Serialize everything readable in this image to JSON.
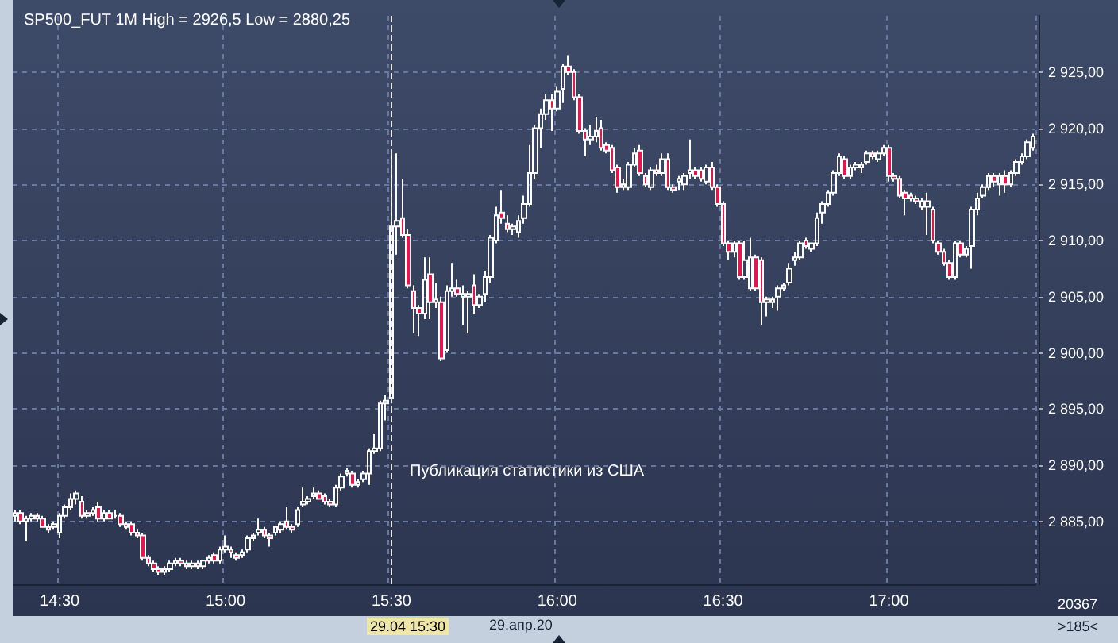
{
  "chart_data": {
    "type": "candlestick",
    "title": "SP500_FUT 1M High = 2926,5 Low = 2880,25",
    "categories": [
      null,
      null,
      null,
      null,
      null,
      null,
      null,
      null,
      "14:30",
      null,
      null,
      null,
      null,
      null,
      null,
      null,
      null,
      null,
      null,
      null,
      null,
      null,
      null,
      null,
      null,
      null,
      null,
      null,
      null,
      null,
      null,
      null,
      null,
      null,
      null,
      null,
      null,
      null,
      "15:00",
      null,
      null,
      null,
      null,
      null,
      null,
      null,
      null,
      null,
      null,
      null,
      null,
      null,
      null,
      null,
      null,
      null,
      null,
      null,
      null,
      null,
      null,
      null,
      null,
      null,
      null,
      null,
      null,
      null,
      "15:30",
      null,
      null,
      null,
      null,
      null,
      null,
      null,
      null,
      null,
      null,
      null,
      null,
      null,
      null,
      null,
      null,
      null,
      null,
      null,
      null,
      null,
      null,
      null,
      null,
      null,
      null,
      null,
      null,
      null,
      "16:00",
      null,
      null,
      null,
      null,
      null,
      null,
      null,
      null,
      null,
      null,
      null,
      null,
      null,
      null,
      null,
      null,
      null,
      null,
      null,
      null,
      null,
      null,
      null,
      null,
      null,
      null,
      null,
      null,
      null,
      "16:30",
      null,
      null,
      null,
      null,
      null,
      null,
      null,
      null,
      null,
      null,
      null,
      null,
      null,
      null,
      null,
      null,
      null,
      null,
      null,
      null,
      null,
      null,
      null,
      null,
      null,
      null,
      null,
      null,
      null,
      "17:00",
      null,
      null,
      null,
      null,
      null,
      null,
      null,
      null,
      null,
      null,
      null,
      null,
      null,
      null,
      null,
      null,
      null,
      null,
      null,
      null,
      null,
      null,
      null,
      null,
      null,
      null
    ],
    "series": [
      {
        "color": "#ffffff",
        "ohlc": [
          [
            2885.5,
            2886,
            2885,
            2885.75
          ],
          [
            2885.75,
            2886,
            2884.75,
            2885
          ],
          [
            2885,
            2885.5,
            2883.25,
            2885.25
          ],
          [
            2885.25,
            2885.75,
            2885,
            2885.5
          ],
          [
            2885.5,
            2885.75,
            2885,
            2885.25
          ],
          [
            2885.25,
            2885.5,
            2884.5,
            2884.5
          ],
          [
            2884.5,
            2884.75,
            2884,
            2884.25
          ],
          [
            2884.5,
            2885,
            2884.25,
            2884.75
          ],
          [
            2884,
            2885.75,
            2883.5,
            2885.5
          ],
          [
            2885.5,
            2886.5,
            2885.25,
            2886.25
          ],
          [
            2886.25,
            2887.5,
            2886,
            2887
          ],
          [
            2887,
            2887.75,
            2886.5,
            2887.5
          ],
          [
            2886.75,
            2887.25,
            2885.25,
            2885.5
          ],
          [
            2885.5,
            2886,
            2885.25,
            2885.75
          ],
          [
            2885.75,
            2886.25,
            2885.5,
            2886
          ],
          [
            2886.25,
            2886.75,
            2885,
            2885.25
          ],
          [
            2885.25,
            2886,
            2885,
            2885.75
          ],
          [
            2885.75,
            2886,
            2885.25,
            2885.25
          ],
          [
            2885.5,
            2886,
            2885.25,
            2885.5
          ],
          [
            2885.5,
            2885.75,
            2884.5,
            2884.75
          ],
          [
            2884.75,
            2885,
            2884.25,
            2884.5
          ],
          [
            2884.75,
            2885,
            2883.75,
            2884
          ],
          [
            2884,
            2884.25,
            2883.5,
            2883.75
          ],
          [
            2883.75,
            2884,
            2881.5,
            2881.75
          ],
          [
            2881.75,
            2882,
            2881,
            2881.25
          ],
          [
            2881.25,
            2881.5,
            2880.5,
            2880.75
          ],
          [
            2880.75,
            2881,
            2880.25,
            2880.5
          ],
          [
            2880.5,
            2881,
            2880.25,
            2880.75
          ],
          [
            2880.75,
            2881.5,
            2880.5,
            2881.25
          ],
          [
            2881.25,
            2881.75,
            2881,
            2881.5
          ],
          [
            2881.5,
            2881.75,
            2881,
            2881.25
          ],
          [
            2881.25,
            2881.5,
            2880.75,
            2881
          ],
          [
            2881,
            2881.5,
            2880.75,
            2881.25
          ],
          [
            2881.25,
            2881.5,
            2880.75,
            2881
          ],
          [
            2881,
            2881.5,
            2880.75,
            2881.5
          ],
          [
            2881.5,
            2882,
            2881.25,
            2881.75
          ],
          [
            2882,
            2882.25,
            2881.25,
            2881.5
          ],
          [
            2881.5,
            2882.75,
            2881.25,
            2882.5
          ],
          [
            2882.5,
            2883.75,
            2882.25,
            2882.75
          ],
          [
            2882.5,
            2882.75,
            2881.75,
            2882.25
          ],
          [
            2882,
            2882.25,
            2881.5,
            2881.75
          ],
          [
            2882,
            2882.5,
            2881.75,
            2882.25
          ],
          [
            2882.5,
            2883.75,
            2882.25,
            2883.5
          ],
          [
            2883.5,
            2884,
            2883.25,
            2883.75
          ],
          [
            2884,
            2885.25,
            2883.75,
            2884.25
          ],
          [
            2884.25,
            2884.5,
            2883.5,
            2883.75
          ],
          [
            2883.75,
            2884,
            2882.75,
            2883.5
          ],
          [
            2884,
            2884.5,
            2883.75,
            2884.5
          ],
          [
            2884.25,
            2885,
            2884,
            2884.75
          ],
          [
            2885,
            2886.25,
            2884.25,
            2884.5
          ],
          [
            2884.5,
            2884.75,
            2884,
            2884.25
          ],
          [
            2884.75,
            2886.25,
            2884.5,
            2886
          ],
          [
            2886.5,
            2888,
            2886.25,
            2886.75
          ],
          [
            2886.75,
            2887.25,
            2886.5,
            2887
          ],
          [
            2887.25,
            2888,
            2887,
            2887.5
          ],
          [
            2887.5,
            2887.75,
            2887,
            2887
          ],
          [
            2887.25,
            2887.5,
            2886.5,
            2886.75
          ],
          [
            2886.75,
            2887,
            2886.25,
            2886.5
          ],
          [
            2886.5,
            2888.25,
            2886.25,
            2888
          ],
          [
            2888,
            2889.25,
            2887.75,
            2889
          ],
          [
            2889.25,
            2889.75,
            2889,
            2889.5
          ],
          [
            2889.25,
            2889.5,
            2888,
            2888.25
          ],
          [
            2888.25,
            2888.75,
            2888,
            2888.5
          ],
          [
            2888.75,
            2889.5,
            2888.5,
            2889.25
          ],
          [
            2889.25,
            2891.5,
            2888.25,
            2891.25
          ],
          [
            2891.25,
            2892.75,
            2891,
            2891.5
          ],
          [
            2891.5,
            2895.75,
            2891.25,
            2895.5
          ],
          [
            2895.5,
            2896.25,
            2894,
            2895.75
          ],
          [
            2896,
            2918,
            2895.5,
            2911.25
          ],
          [
            2911.25,
            2917.75,
            2908.75,
            2911.75
          ],
          [
            2912,
            2915.5,
            2910.25,
            2910.5
          ],
          [
            2910.5,
            2911,
            2905.75,
            2906
          ],
          [
            2905.5,
            2906,
            2901.75,
            2904
          ],
          [
            2904,
            2904.25,
            2901.5,
            2903.5
          ],
          [
            2903.5,
            2908.5,
            2903,
            2906.5
          ],
          [
            2907,
            2908.5,
            2903,
            2904.5
          ],
          [
            2904.5,
            2906.25,
            2904,
            2904.75
          ],
          [
            2904.5,
            2905,
            2899.25,
            2899.5
          ],
          [
            2900.25,
            2906,
            2900,
            2905.5
          ],
          [
            2905.5,
            2908,
            2905,
            2905.75
          ],
          [
            2905.75,
            2906.5,
            2905,
            2905.25
          ],
          [
            2905,
            2906,
            2902.5,
            2905.25
          ],
          [
            2905,
            2905.5,
            2901.75,
            2905.25
          ],
          [
            2906,
            2907,
            2903.5,
            2904.25
          ],
          [
            2904.25,
            2905.25,
            2904,
            2905
          ],
          [
            2905.25,
            2907.25,
            2904.5,
            2906.75
          ],
          [
            2906.75,
            2910.5,
            2906.25,
            2910.25
          ],
          [
            2910,
            2913,
            2909.75,
            2912.25
          ],
          [
            2912.5,
            2914.5,
            2911.5,
            2912
          ],
          [
            2911.5,
            2912.25,
            2910.75,
            2911
          ],
          [
            2911,
            2911.5,
            2910.5,
            2911.25
          ],
          [
            2910.75,
            2912.25,
            2910.25,
            2911.75
          ],
          [
            2912,
            2914,
            2911.5,
            2913.25
          ],
          [
            2913.25,
            2918.5,
            2913,
            2916
          ],
          [
            2916,
            2920.25,
            2915.5,
            2920
          ],
          [
            2920,
            2921.75,
            2918.25,
            2921.25
          ],
          [
            2921.25,
            2923,
            2920.75,
            2922.5
          ],
          [
            2922.5,
            2923,
            2919.75,
            2921.75
          ],
          [
            2921.75,
            2923.75,
            2921.5,
            2923.25
          ],
          [
            2923.5,
            2925.75,
            2922.25,
            2925.5
          ],
          [
            2925.5,
            2926.5,
            2924.75,
            2925
          ],
          [
            2925,
            2925.25,
            2922.5,
            2922.75
          ],
          [
            2922.75,
            2923,
            2919.5,
            2919.75
          ],
          [
            2919.75,
            2920,
            2917.5,
            2919
          ],
          [
            2919,
            2920.25,
            2918.5,
            2919.25
          ],
          [
            2919.25,
            2921,
            2918.75,
            2919.75
          ],
          [
            2920,
            2920.75,
            2918,
            2918.25
          ],
          [
            2918.5,
            2918.75,
            2917.75,
            2918
          ],
          [
            2918.25,
            2918.5,
            2916,
            2916.25
          ],
          [
            2916.5,
            2916.75,
            2914.25,
            2914.75
          ],
          [
            2914.75,
            2915.5,
            2914.5,
            2915
          ],
          [
            2914.75,
            2917,
            2914.5,
            2916.75
          ],
          [
            2916.75,
            2918.25,
            2916.5,
            2917.75
          ],
          [
            2918,
            2918.5,
            2915.75,
            2916
          ],
          [
            2915.75,
            2916,
            2914.75,
            2915
          ],
          [
            2914.75,
            2916.5,
            2914.5,
            2916.25
          ],
          [
            2916.25,
            2916.75,
            2915.75,
            2916
          ],
          [
            2916,
            2917.75,
            2915.75,
            2917.25
          ],
          [
            2917.25,
            2917.75,
            2914.5,
            2914.75
          ],
          [
            2914.75,
            2915,
            2914.25,
            2914.5
          ],
          [
            2915.25,
            2915.75,
            2914.5,
            2915.5
          ],
          [
            2915,
            2916,
            2914.5,
            2915.75
          ],
          [
            2916,
            2919,
            2915.5,
            2916.25
          ],
          [
            2916.25,
            2916.5,
            2915.5,
            2915.75
          ],
          [
            2916.25,
            2916.5,
            2915.25,
            2915.5
          ],
          [
            2915.25,
            2916.75,
            2915,
            2916.5
          ],
          [
            2916.5,
            2917,
            2914.5,
            2914.75
          ],
          [
            2914.75,
            2915,
            2913,
            2913.25
          ],
          [
            2913.25,
            2913.5,
            2909.5,
            2909.75
          ],
          [
            2909.75,
            2910,
            2908.25,
            2909
          ],
          [
            2909,
            2910,
            2908.5,
            2909.75
          ],
          [
            2909.75,
            2910,
            2906.5,
            2906.75
          ],
          [
            2906.75,
            2910,
            2906.5,
            2908.25
          ],
          [
            2905.75,
            2910.25,
            2905.5,
            2908.5
          ],
          [
            2908.5,
            2908.75,
            2905.5,
            2905.75
          ],
          [
            2908.25,
            2908.5,
            2902.5,
            2904.5
          ],
          [
            2904.5,
            2905,
            2903.25,
            2904.75
          ],
          [
            2904.5,
            2905,
            2904,
            2904.75
          ],
          [
            2905,
            2906,
            2903.75,
            2905.75
          ],
          [
            2905.75,
            2906.25,
            2905.5,
            2906
          ],
          [
            2906.25,
            2908,
            2906,
            2907.5
          ],
          [
            2908.25,
            2909,
            2907.75,
            2908.5
          ],
          [
            2908.5,
            2910,
            2908.25,
            2909.75
          ],
          [
            2910,
            2910.25,
            2909.25,
            2909.5
          ],
          [
            2909.25,
            2909.75,
            2909,
            2909.75
          ],
          [
            2909.75,
            2912.5,
            2909.5,
            2912
          ],
          [
            2912.5,
            2913.5,
            2911.5,
            2913.25
          ],
          [
            2913.25,
            2914.5,
            2913,
            2914.25
          ],
          [
            2914.25,
            2916.25,
            2914,
            2916
          ],
          [
            2916,
            2917.75,
            2915.75,
            2917.5
          ],
          [
            2917.25,
            2917.5,
            2915.5,
            2915.75
          ],
          [
            2915.75,
            2916.75,
            2915.5,
            2916.5
          ],
          [
            2916.5,
            2917,
            2916.25,
            2916.75
          ],
          [
            2916.5,
            2917,
            2916,
            2916.75
          ],
          [
            2917,
            2918,
            2916.75,
            2917.75
          ],
          [
            2917.75,
            2918,
            2917.25,
            2917.5
          ],
          [
            2917.25,
            2918,
            2917,
            2917.75
          ],
          [
            2917.75,
            2918.5,
            2917.5,
            2918.25
          ],
          [
            2918.25,
            2918.5,
            2915.25,
            2915.75
          ],
          [
            2915.75,
            2916,
            2915.25,
            2915.5
          ],
          [
            2915.5,
            2915.75,
            2913.75,
            2914
          ],
          [
            2914.25,
            2914.5,
            2912.25,
            2913.75
          ],
          [
            2914,
            2914.25,
            2913.5,
            2913.75
          ],
          [
            2913.75,
            2914,
            2913.25,
            2913.5
          ],
          [
            2913,
            2913.75,
            2912.75,
            2913.5
          ],
          [
            2913,
            2914.25,
            2910.5,
            2913.5
          ],
          [
            2912.75,
            2913,
            2909.75,
            2910
          ],
          [
            2909.75,
            2910,
            2908.75,
            2909
          ],
          [
            2909,
            2909.25,
            2907.75,
            2908
          ],
          [
            2908,
            2908.25,
            2906.5,
            2906.75
          ],
          [
            2906.75,
            2910,
            2906.5,
            2909.75
          ],
          [
            2909.75,
            2910,
            2908.5,
            2908.75
          ],
          [
            2908.75,
            2909.5,
            2908.5,
            2909.25
          ],
          [
            2909.5,
            2913,
            2907.5,
            2912.75
          ],
          [
            2912.75,
            2914.25,
            2912.25,
            2913.75
          ],
          [
            2914,
            2915,
            2913.75,
            2914.75
          ],
          [
            2914.75,
            2916,
            2914.5,
            2915.75
          ],
          [
            2915.75,
            2916,
            2914.75,
            2915.25
          ],
          [
            2915,
            2916,
            2914,
            2915.75
          ],
          [
            2915.75,
            2916.25,
            2914.25,
            2915
          ],
          [
            2915,
            2916.25,
            2914.75,
            2916
          ],
          [
            2916,
            2917.25,
            2915.75,
            2917
          ],
          [
            2917,
            2917.75,
            2916.75,
            2917.5
          ],
          [
            2917.5,
            2919,
            2917.25,
            2918.75
          ],
          [
            2918.25,
            2919.5,
            2918,
            2919.25
          ]
        ]
      }
    ],
    "ylim": [
      2879.4,
      2930
    ],
    "yticks": [
      {
        "value": 2885,
        "label": "2 885,00"
      },
      {
        "value": 2890,
        "label": "2 890,00"
      },
      {
        "value": 2895,
        "label": "2 895,00"
      },
      {
        "value": 2900,
        "label": "2 900,00"
      },
      {
        "value": 2905,
        "label": "2 905,00"
      },
      {
        "value": 2910,
        "label": "2 910,00"
      },
      {
        "value": 2915,
        "label": "2 915,00"
      },
      {
        "value": 2920,
        "label": "2 920,00"
      },
      {
        "value": 2925,
        "label": "2 925,00"
      }
    ],
    "ref_lines": [
      {
        "axis": "x",
        "value": "15:30",
        "color": "#e8e8e8",
        "line_style": "dashed"
      }
    ],
    "annotations": [
      "Публикация статистики из США",
      "29.04 15:30",
      "29.апр.20",
      "20367",
      ">185<"
    ],
    "grid": true
  }
}
